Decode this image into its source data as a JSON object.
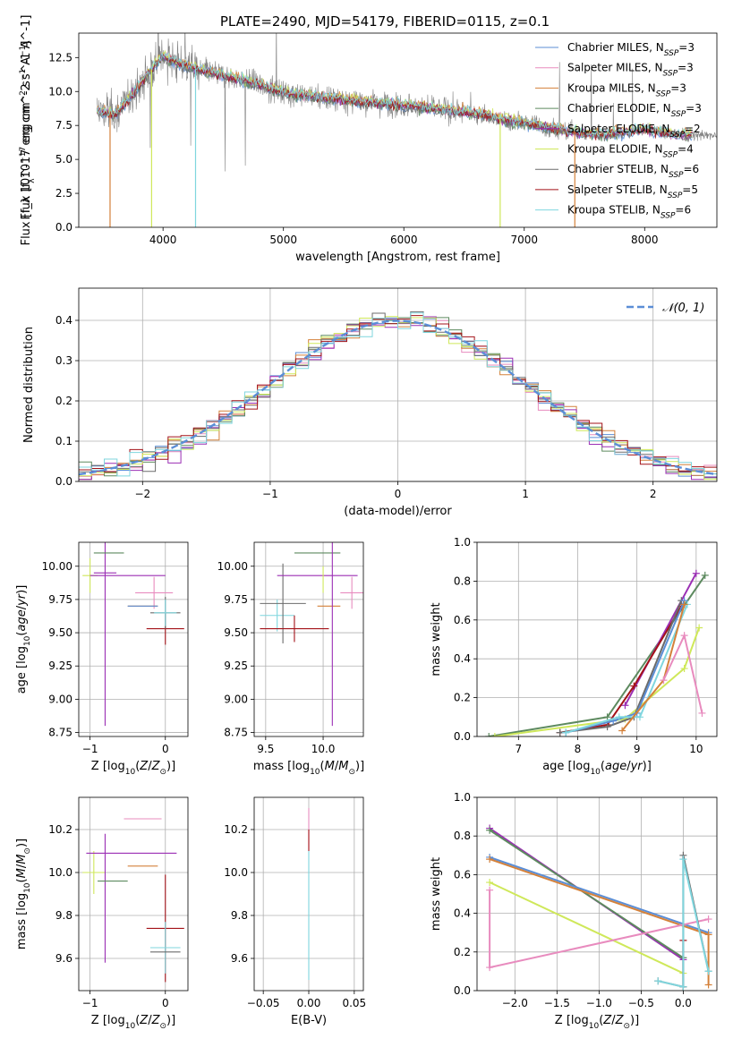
{
  "title": "PLATE=2490, MJD=54179, FIBERID=0115, z=0.1",
  "colors": {
    "Chabrier MILES": "#5b8ed6",
    "Salpeter MILES": "#e88bbe",
    "Kroupa MILES": "#d4813a",
    "Chabrier ELODIE": "#5d8a5f",
    "Salpeter ELODIE": "#9b2fb4",
    "Kroupa ELODIE": "#cfe85a",
    "Chabrier STELIB": "#6b6b6b",
    "Salpeter STELIB": "#a31218",
    "Kroupa STELIB": "#7fd6de",
    "data": "#808080",
    "normal": "#5b8ed6"
  },
  "chart_data": [
    {
      "id": "spectrum",
      "type": "line",
      "xlabel": "wavelength [Angstrom, rest frame]",
      "ylabel": "Flux [f_λ 10^-17 erg cm^-2 s^-1 A^-1]",
      "xlim": [
        3300,
        8600
      ],
      "ylim": [
        0,
        14.3
      ],
      "xticks": [
        4000,
        5000,
        6000,
        7000,
        8000
      ],
      "yticks": [
        0.0,
        2.5,
        5.0,
        7.5,
        10.0,
        12.5
      ],
      "grid": false,
      "legend_position": "top-right",
      "legend": [
        {
          "model": "Chabrier MILES",
          "nssp": "3"
        },
        {
          "model": "Salpeter MILES",
          "nssp": "3"
        },
        {
          "model": "Kroupa MILES",
          "nssp": "3"
        },
        {
          "model": "Chabrier ELODIE",
          "nssp": "3"
        },
        {
          "model": "Salpeter ELODIE",
          "nssp": "2"
        },
        {
          "model": "Kroupa ELODIE",
          "nssp": "4"
        },
        {
          "model": "Chabrier STELIB",
          "nssp": "6"
        },
        {
          "model": "Salpeter STELIB",
          "nssp": "5"
        },
        {
          "model": "Kroupa STELIB",
          "nssp": "6"
        }
      ],
      "continuum": {
        "x": [
          3450,
          3600,
          3750,
          3900,
          4000,
          4100,
          4300,
          4500,
          4800,
          5000,
          5300,
          5600,
          6000,
          6300,
          6600,
          6800,
          7000,
          7300,
          7600,
          8000,
          8300,
          8600
        ],
        "y": [
          8.6,
          8.3,
          9.8,
          11.6,
          12.6,
          12.2,
          11.6,
          11.2,
          10.5,
          9.9,
          9.6,
          9.3,
          9.0,
          8.7,
          8.4,
          8.0,
          7.7,
          7.2,
          6.8,
          7.2,
          6.8,
          6.8
        ]
      },
      "absorption_features": [
        {
          "model": "Kroupa MILES",
          "x": 3560,
          "y": 0
        },
        {
          "model": "Kroupa ELODIE",
          "x": 3905,
          "y": 0
        },
        {
          "model": "Kroupa STELIB",
          "x": 4270,
          "y": 0
        },
        {
          "model": "Kroupa ELODIE",
          "x": 6800,
          "y": 0
        },
        {
          "model": "Kroupa MILES",
          "x": 7420,
          "y": 0
        }
      ]
    },
    {
      "id": "residuals",
      "type": "line",
      "xlabel": "(data-model)/error",
      "ylabel": "Normed distribution",
      "xlim": [
        -2.5,
        2.5
      ],
      "ylim": [
        0,
        0.48
      ],
      "xticks": [
        -2,
        -1,
        0,
        1,
        2
      ],
      "yticks": [
        0.0,
        0.1,
        0.2,
        0.3,
        0.4
      ],
      "grid": true,
      "legend_position": "top-right",
      "normal_label": "𝒩(0, 1)",
      "bin_width": 0.1,
      "bins_from": -2.5
    },
    {
      "id": "age-vs-Z",
      "type": "scatter",
      "xlabel": "Z [log10(Z/Z⊙)]",
      "ylabel": "age  [log10(age/yr)]",
      "xlim": [
        -1.15,
        0.3
      ],
      "ylim": [
        8.72,
        10.18
      ],
      "xticks": [
        -1,
        0
      ],
      "yticks": [
        8.75,
        9.0,
        9.25,
        9.5,
        9.75,
        10.0
      ],
      "grid": true,
      "points": [
        {
          "model": "Kroupa ELODIE",
          "x": -1.0,
          "xerr": 0.1,
          "y": 9.93,
          "yerr": 0.13
        },
        {
          "model": "Salpeter ELODIE",
          "x": -0.8,
          "xerr": 0.15,
          "y": 9.95,
          "yerr": 1.15
        },
        {
          "model": "Chabrier ELODIE",
          "x": -0.75,
          "xerr": 0.2,
          "y": 10.1,
          "yerr": 0.0
        },
        {
          "model": "Salpeter ELODIE",
          "x": -0.5,
          "xerr": 0.5,
          "y": 9.93,
          "yerr": 0.0
        },
        {
          "model": "Salpeter MILES",
          "x": -0.15,
          "xerr": 0.25,
          "y": 9.8,
          "yerr": 0.12
        },
        {
          "model": "Kroupa MILES",
          "x": -0.3,
          "xerr": 0.2,
          "y": 9.7,
          "yerr": 0.0
        },
        {
          "model": "Chabrier MILES",
          "x": -0.3,
          "xerr": 0.2,
          "y": 9.7,
          "yerr": 0.0
        },
        {
          "model": "Salpeter STELIB",
          "x": 0.0,
          "xerr": 0.25,
          "y": 9.53,
          "yerr": 0.12
        },
        {
          "model": "Chabrier STELIB",
          "x": 0.0,
          "xerr": 0.2,
          "y": 9.65,
          "yerr": 0.12
        },
        {
          "model": "Kroupa STELIB",
          "x": 0.0,
          "xerr": 0.15,
          "y": 9.65,
          "yerr": 0.1
        }
      ]
    },
    {
      "id": "age-vs-mass",
      "type": "scatter",
      "xlabel": "mass [log10(M/M⊙)]",
      "ylabel": "",
      "xlim": [
        9.4,
        10.35
      ],
      "ylim": [
        8.72,
        10.18
      ],
      "xticks": [
        9.5,
        10.0
      ],
      "yticks": [
        8.75,
        9.0,
        9.25,
        9.5,
        9.75,
        10.0
      ],
      "grid": true,
      "points": [
        {
          "model": "Kroupa STELIB",
          "x": 9.6,
          "xerr": 0.15,
          "y": 9.63,
          "yerr": 0.12
        },
        {
          "model": "Chabrier STELIB",
          "x": 9.65,
          "xerr": 0.2,
          "y": 9.72,
          "yerr": 0.3
        },
        {
          "model": "Salpeter STELIB",
          "x": 9.75,
          "xerr": 0.3,
          "y": 9.53,
          "yerr": 0.1
        },
        {
          "model": "Chabrier ELODIE",
          "x": 9.95,
          "xerr": 0.2,
          "y": 10.1,
          "yerr": 0.0
        },
        {
          "model": "Salpeter ELODIE",
          "x": 9.95,
          "xerr": 0.35,
          "y": 9.93,
          "yerr": 0.0
        },
        {
          "model": "Kroupa ELODIE",
          "x": 10.0,
          "xerr": 0.0,
          "y": 9.9,
          "yerr": 0.1
        },
        {
          "model": "Kroupa MILES",
          "x": 10.05,
          "xerr": 0.1,
          "y": 9.7,
          "yerr": 0.0
        },
        {
          "model": "Salpeter ELODIE",
          "x": 10.08,
          "xerr": 0.0,
          "y": 9.5,
          "yerr": 0.7
        },
        {
          "model": "Salpeter MILES",
          "x": 10.25,
          "xerr": 0.1,
          "y": 9.8,
          "yerr": 0.12
        }
      ]
    },
    {
      "id": "weight-vs-age",
      "type": "line",
      "xlabel": "age  [log10(age/yr)]",
      "ylabel": "mass weight",
      "xlim": [
        6.3,
        10.35
      ],
      "ylim": [
        0,
        1
      ],
      "xticks": [
        7,
        8,
        9,
        10
      ],
      "yticks": [
        0.0,
        0.2,
        0.4,
        0.6,
        0.8,
        1.0
      ],
      "grid": true,
      "series": [
        {
          "model": "Chabrier ELODIE",
          "x": [
            6.5,
            8.5,
            10.15
          ],
          "y": [
            0.0,
            0.1,
            0.83
          ]
        },
        {
          "model": "Kroupa ELODIE",
          "x": [
            6.6,
            8.8,
            9.8,
            10.05
          ],
          "y": [
            0.0,
            0.09,
            0.35,
            0.56
          ]
        },
        {
          "model": "Salpeter ELODIE",
          "x": [
            8.8,
            10.0
          ],
          "y": [
            0.16,
            0.84
          ]
        },
        {
          "model": "Salpeter STELIB",
          "x": [
            7.7,
            8.5,
            8.95,
            9.75
          ],
          "y": [
            0.02,
            0.06,
            0.26,
            0.67
          ]
        },
        {
          "model": "Chabrier STELIB",
          "x": [
            7.7,
            8.5,
            8.95,
            9.75
          ],
          "y": [
            0.02,
            0.05,
            0.1,
            0.7
          ]
        },
        {
          "model": "Chabrier MILES",
          "x": [
            7.8,
            8.6,
            9.0,
            9.8
          ],
          "y": [
            0.02,
            0.08,
            0.12,
            0.7
          ]
        },
        {
          "model": "Kroupa STELIB",
          "x": [
            7.8,
            8.7,
            9.05,
            9.85
          ],
          "y": [
            0.02,
            0.1,
            0.1,
            0.68
          ]
        },
        {
          "model": "Kroupa MILES",
          "x": [
            8.75,
            9.45,
            9.8
          ],
          "y": [
            0.03,
            0.29,
            0.68
          ]
        },
        {
          "model": "Salpeter MILES",
          "x": [
            9.45,
            9.8,
            10.1
          ],
          "y": [
            0.29,
            0.52,
            0.12
          ]
        }
      ]
    },
    {
      "id": "mass-vs-Z",
      "type": "scatter",
      "xlabel": "Z [log10(Z/Z⊙)]",
      "ylabel": "mass [log10(M/M⊙)]",
      "xlim": [
        -1.15,
        0.3
      ],
      "ylim": [
        9.45,
        10.35
      ],
      "xticks": [
        -1,
        0
      ],
      "yticks": [
        9.6,
        9.8,
        10.0,
        10.2
      ],
      "grid": true,
      "points": [
        {
          "model": "Kroupa ELODIE",
          "x": -0.95,
          "xerr": 0.15,
          "y": 10.0,
          "yerr": 0.1
        },
        {
          "model": "Salpeter ELODIE",
          "x": -0.8,
          "xerr": 0.0,
          "y": 9.88,
          "yerr": 0.3
        },
        {
          "model": "Chabrier ELODIE",
          "x": -0.7,
          "xerr": 0.2,
          "y": 9.96,
          "yerr": 0.0
        },
        {
          "model": "Salpeter ELODIE",
          "x": -0.45,
          "xerr": 0.6,
          "y": 10.09,
          "yerr": 0.0
        },
        {
          "model": "Salpeter MILES",
          "x": -0.3,
          "xerr": 0.25,
          "y": 10.25,
          "yerr": 0.0
        },
        {
          "model": "Kroupa MILES",
          "x": -0.3,
          "xerr": 0.2,
          "y": 10.03,
          "yerr": 0.0
        },
        {
          "model": "Salpeter STELIB",
          "x": 0.0,
          "xerr": 0.25,
          "y": 9.74,
          "yerr": 0.25
        },
        {
          "model": "Kroupa STELIB",
          "x": 0.0,
          "xerr": 0.2,
          "y": 9.65,
          "yerr": 0.12
        },
        {
          "model": "Chabrier STELIB",
          "x": 0.0,
          "xerr": 0.2,
          "y": 9.63,
          "yerr": 0.0
        }
      ]
    },
    {
      "id": "mass-vs-ebv",
      "type": "scatter",
      "xlabel": "E(B-V)",
      "ylabel": "",
      "xlim": [
        -0.06,
        0.06
      ],
      "ylim": [
        9.45,
        10.35
      ],
      "xticks": [
        -0.05,
        0.0,
        0.05
      ],
      "yticks": [
        9.6,
        9.8,
        10.0,
        10.2
      ],
      "grid": true,
      "points": [
        {
          "model": "Salpeter MILES",
          "x": 0.0,
          "xerr": 0.0,
          "y": 10.2,
          "yerr": 0.1
        },
        {
          "model": "Salpeter STELIB",
          "x": 0.0,
          "xerr": 0.0,
          "y": 10.15,
          "yerr": 0.05
        },
        {
          "model": "Kroupa STELIB",
          "x": 0.0,
          "xerr": 0.0,
          "y": 9.8,
          "yerr": 0.3
        }
      ]
    },
    {
      "id": "weight-vs-Z",
      "type": "line",
      "xlabel": "Z [log10(Z/Z⊙)]",
      "ylabel": "mass weight",
      "xlim": [
        -2.45,
        0.4
      ],
      "ylim": [
        0,
        1
      ],
      "xticks": [
        -2.0,
        -1.5,
        -1.0,
        -0.5,
        0.0
      ],
      "yticks": [
        0.0,
        0.2,
        0.4,
        0.6,
        0.8,
        1.0
      ],
      "grid": true,
      "series": [
        {
          "model": "Salpeter ELODIE",
          "x": [
            -2.3,
            0.0
          ],
          "y": [
            0.84,
            0.16
          ]
        },
        {
          "model": "Chabrier ELODIE",
          "x": [
            -2.3,
            0.0
          ],
          "y": [
            0.83,
            0.17
          ]
        },
        {
          "model": "Chabrier MILES",
          "x": [
            -2.3,
            0.3
          ],
          "y": [
            0.69,
            0.3
          ]
        },
        {
          "model": "Kroupa MILES",
          "x": [
            -2.3,
            0.3,
            0.3
          ],
          "y": [
            0.68,
            0.29,
            0.03
          ]
        },
        {
          "model": "Kroupa ELODIE",
          "x": [
            -2.3,
            0.0
          ],
          "y": [
            0.56,
            0.09
          ]
        },
        {
          "model": "Salpeter MILES",
          "x": [
            -2.3,
            -2.3,
            0.3
          ],
          "y": [
            0.52,
            0.12,
            0.37
          ]
        },
        {
          "model": "Salpeter STELIB",
          "x": [
            0.0,
            0.0
          ],
          "y": [
            0.26,
            0.02
          ]
        },
        {
          "model": "Chabrier STELIB",
          "x": [
            -0.3,
            0.0,
            0.0,
            0.3
          ],
          "y": [
            0.05,
            0.02,
            0.7,
            0.1
          ]
        },
        {
          "model": "Kroupa STELIB",
          "x": [
            -0.3,
            0.0,
            0.0,
            0.3
          ],
          "y": [
            0.05,
            0.02,
            0.68,
            0.1
          ]
        }
      ]
    }
  ]
}
